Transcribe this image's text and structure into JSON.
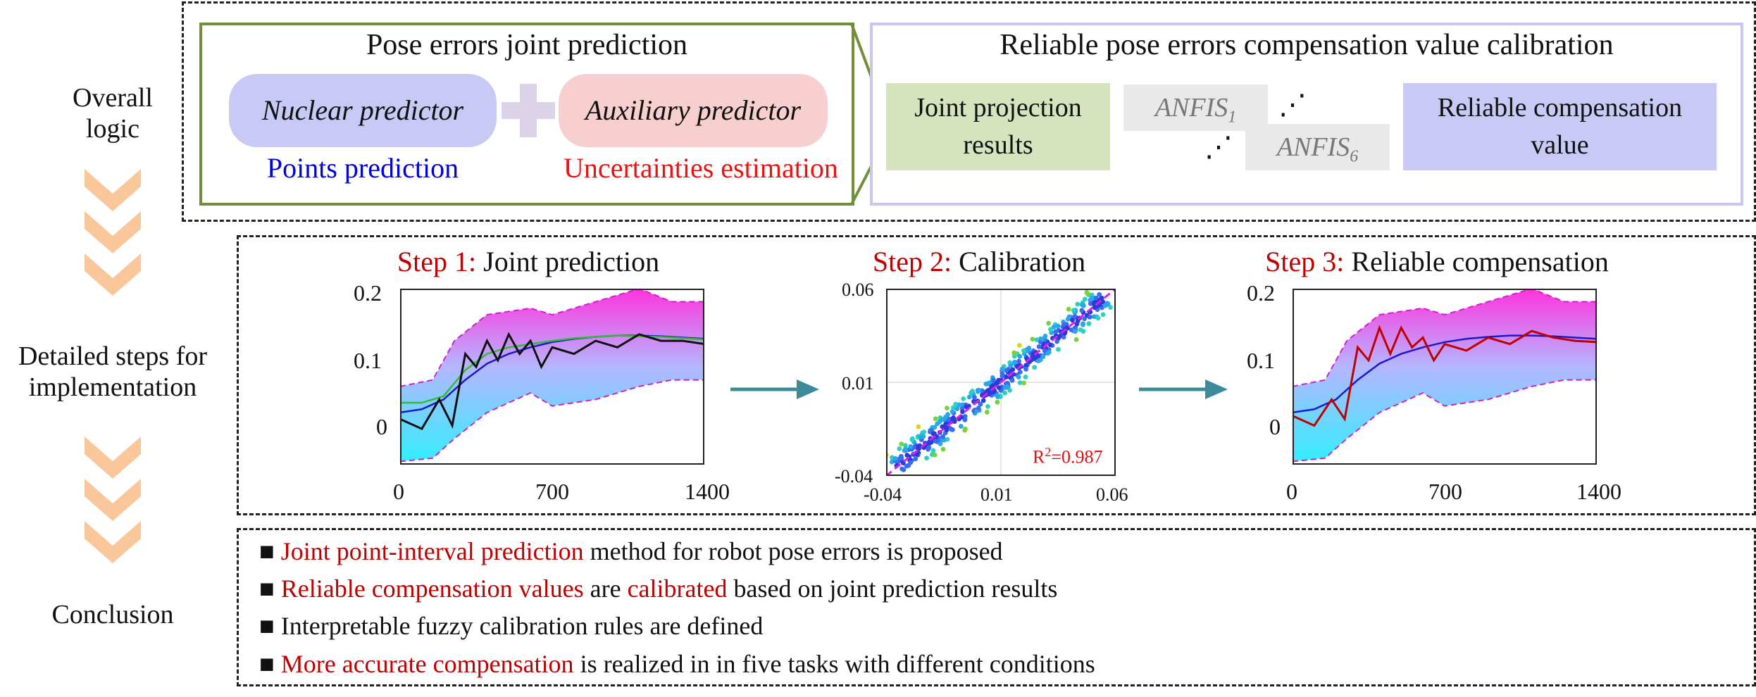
{
  "sidebar": {
    "overall": "Overall\nlogic",
    "detailed": "Detailed steps for\nimplementation",
    "conclusion": "Conclusion"
  },
  "logic": {
    "left_title": "Pose errors joint prediction",
    "nuclear": "Nuclear predictor",
    "auxiliary": "Auxiliary predictor",
    "points": "Points prediction",
    "uncert": "Uncertainties estimation",
    "right_title": "Reliable pose errors compensation value calibration",
    "joint_proj": "Joint projection\nresults",
    "anfis1": "ANFIS",
    "anfis1_sub": "1",
    "anfis6": "ANFIS",
    "anfis6_sub": "6",
    "dots1": "⋰",
    "dots2": "⋰",
    "reliable": "Reliable compensation\nvalue"
  },
  "steps": {
    "s1_label": "Step 1:",
    "s1_text": " Joint prediction",
    "s2_label": "Step 2:",
    "s2_text": " Calibration",
    "s3_label": "Step 3:",
    "s3_text": " Reliable compensation",
    "r2_prefix": "R",
    "r2_sup": "2",
    "r2_value": "=0.987"
  },
  "chart_data": [
    {
      "type": "line",
      "title": "Step 1: Joint prediction",
      "x_ticks": [
        "0",
        "700",
        "1400"
      ],
      "y_ticks": [
        "0.2",
        "0.1",
        "0"
      ],
      "xlim": [
        0,
        1400
      ],
      "ylim": [
        -0.06,
        0.21
      ],
      "series": [
        {
          "name": "interval upper",
          "x": [
            0,
            150,
            250,
            400,
            600,
            700,
            900,
            1100,
            1250,
            1400
          ],
          "y": [
            0.06,
            0.07,
            0.13,
            0.17,
            0.18,
            0.17,
            0.19,
            0.21,
            0.19,
            0.19
          ]
        },
        {
          "name": "interval lower",
          "x": [
            0,
            150,
            250,
            400,
            600,
            700,
            900,
            1100,
            1250,
            1400
          ],
          "y": [
            -0.055,
            -0.05,
            -0.02,
            0.02,
            0.05,
            0.03,
            0.04,
            0.06,
            0.07,
            0.07
          ]
        },
        {
          "name": "nuclear prediction",
          "x": [
            0,
            100,
            200,
            300,
            400,
            500,
            600,
            700,
            800,
            900,
            1000,
            1100,
            1200,
            1300,
            1400
          ],
          "y": [
            0.02,
            0.025,
            0.04,
            0.07,
            0.095,
            0.11,
            0.12,
            0.128,
            0.133,
            0.136,
            0.138,
            0.138,
            0.137,
            0.135,
            0.133
          ]
        },
        {
          "name": "auxiliary prediction",
          "x": [
            0,
            100,
            200,
            300,
            400,
            500,
            600,
            700,
            800,
            900,
            1000,
            1100,
            1200,
            1300,
            1400
          ],
          "y": [
            0.035,
            0.035,
            0.045,
            0.085,
            0.11,
            0.12,
            0.125,
            0.13,
            0.134,
            0.136,
            0.138,
            0.137,
            0.136,
            0.134,
            0.132
          ]
        },
        {
          "name": "actual",
          "x": [
            0,
            100,
            180,
            240,
            300,
            350,
            400,
            450,
            500,
            550,
            600,
            650,
            700,
            800,
            900,
            1000,
            1100,
            1200,
            1300,
            1400
          ],
          "y": [
            0.01,
            -0.005,
            0.04,
            0.0,
            0.11,
            0.09,
            0.13,
            0.1,
            0.14,
            0.11,
            0.13,
            0.09,
            0.12,
            0.11,
            0.13,
            0.12,
            0.14,
            0.13,
            0.13,
            0.125
          ]
        }
      ]
    },
    {
      "type": "scatter",
      "title": "Step 2: Calibration",
      "x_ticks": [
        "-0.04",
        "0.01",
        "0.06"
      ],
      "y_ticks": [
        "0.06",
        "0.01",
        "-0.04"
      ],
      "xlim": [
        -0.04,
        0.06
      ],
      "ylim": [
        -0.04,
        0.06
      ],
      "annotation": "R2=0.987",
      "series": [
        {
          "name": "points",
          "trend": [
            [
              -0.04,
              -0.04
            ],
            [
              0.06,
              0.06
            ]
          ]
        }
      ]
    },
    {
      "type": "line",
      "title": "Step 3: Reliable compensation",
      "x_ticks": [
        "0",
        "700",
        "1400"
      ],
      "y_ticks": [
        "0.2",
        "0.1",
        "0"
      ],
      "xlim": [
        0,
        1400
      ],
      "ylim": [
        -0.06,
        0.21
      ],
      "series": [
        {
          "name": "interval upper",
          "x": [
            0,
            150,
            250,
            400,
            600,
            700,
            900,
            1100,
            1250,
            1400
          ],
          "y": [
            0.06,
            0.07,
            0.13,
            0.17,
            0.18,
            0.17,
            0.19,
            0.21,
            0.19,
            0.19
          ]
        },
        {
          "name": "interval lower",
          "x": [
            0,
            150,
            250,
            400,
            600,
            700,
            900,
            1100,
            1250,
            1400
          ],
          "y": [
            -0.055,
            -0.05,
            -0.02,
            0.02,
            0.05,
            0.03,
            0.04,
            0.06,
            0.07,
            0.07
          ]
        },
        {
          "name": "nuclear prediction",
          "x": [
            0,
            100,
            200,
            300,
            400,
            500,
            600,
            700,
            800,
            900,
            1000,
            1100,
            1200,
            1300,
            1400
          ],
          "y": [
            0.02,
            0.025,
            0.04,
            0.07,
            0.095,
            0.11,
            0.12,
            0.128,
            0.133,
            0.136,
            0.138,
            0.138,
            0.137,
            0.135,
            0.133
          ]
        },
        {
          "name": "compensation",
          "x": [
            0,
            100,
            180,
            240,
            300,
            350,
            400,
            450,
            500,
            550,
            600,
            650,
            700,
            800,
            900,
            1000,
            1100,
            1200,
            1300,
            1400
          ],
          "y": [
            0.015,
            0.0,
            0.04,
            0.01,
            0.12,
            0.1,
            0.15,
            0.11,
            0.15,
            0.12,
            0.135,
            0.1,
            0.125,
            0.115,
            0.135,
            0.125,
            0.145,
            0.135,
            0.13,
            0.128
          ]
        }
      ]
    }
  ],
  "conclusions": [
    {
      "red": "Joint point-interval prediction",
      "rest": " method for robot pose errors is proposed"
    },
    {
      "red": "Reliable compensation values",
      "mid": " are ",
      "red2": "calibrated",
      "rest": " based on joint prediction results"
    },
    {
      "red": "",
      "rest": "Interpretable fuzzy calibration rules are defined"
    },
    {
      "red": "More accurate compensation",
      "rest": " is realized in in five tasks with different conditions"
    }
  ],
  "bullet": "■",
  "colors": {
    "red": "#c00000",
    "blue": "#0000dd",
    "green_border": "#6f8f3a",
    "violet": "#c9c6f0",
    "chevron": "#f9c79a",
    "arrow": "#3c8a9a",
    "magenta": "#e020e0"
  }
}
